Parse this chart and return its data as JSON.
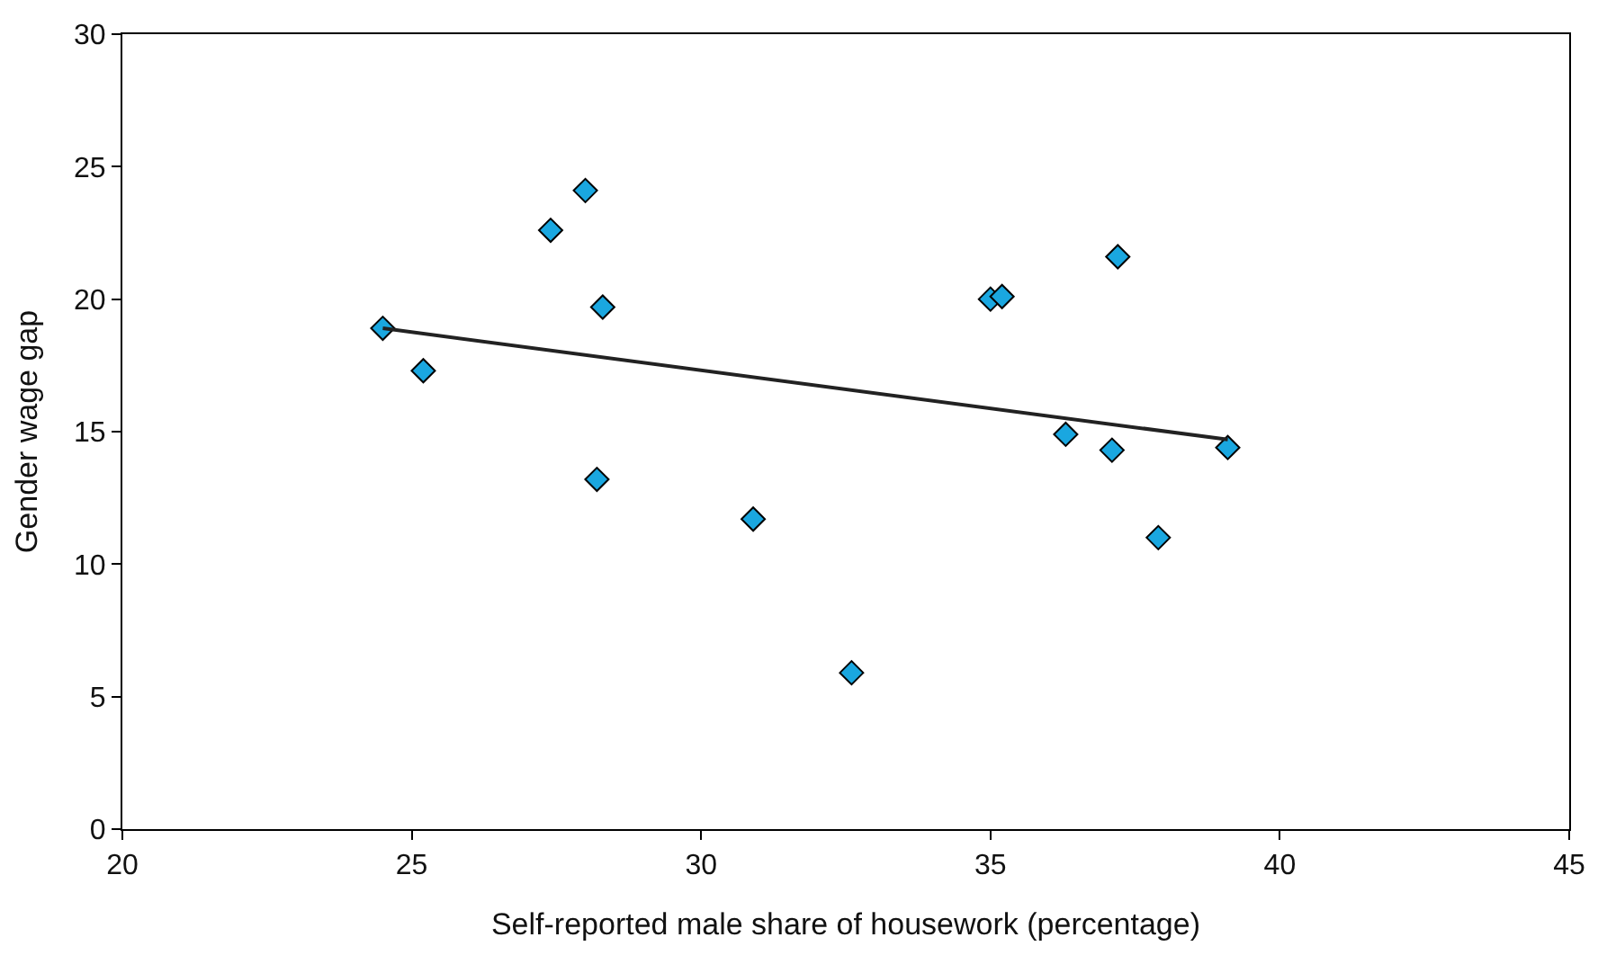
{
  "chart_data": {
    "type": "scatter",
    "xlabel": "Self-reported male share of housework (percentage)",
    "ylabel": "Gender wage gap",
    "xlim": [
      20,
      45
    ],
    "xticks": [
      20,
      25,
      30,
      35,
      40,
      45
    ],
    "ylim": [
      0,
      30
    ],
    "yticks": [
      0,
      5,
      10,
      15,
      20,
      25,
      30
    ],
    "series": [
      {
        "marker": "diamond",
        "color": "#1aa7e0",
        "x": [
          24.5,
          25.2,
          27.4,
          28.0,
          28.3,
          28.2,
          30.9,
          32.6,
          35.0,
          35.2,
          37.2,
          36.3,
          37.1,
          37.9,
          39.1
        ],
        "values": [
          18.9,
          17.3,
          22.6,
          24.1,
          19.7,
          13.2,
          11.7,
          5.9,
          20.0,
          20.1,
          21.6,
          14.9,
          14.3,
          11.0,
          14.4
        ]
      },
      {
        "type": "line",
        "marker": "none",
        "color": "#222222",
        "x": [
          24.5,
          39.1
        ],
        "values": [
          18.9,
          14.7
        ]
      }
    ]
  }
}
